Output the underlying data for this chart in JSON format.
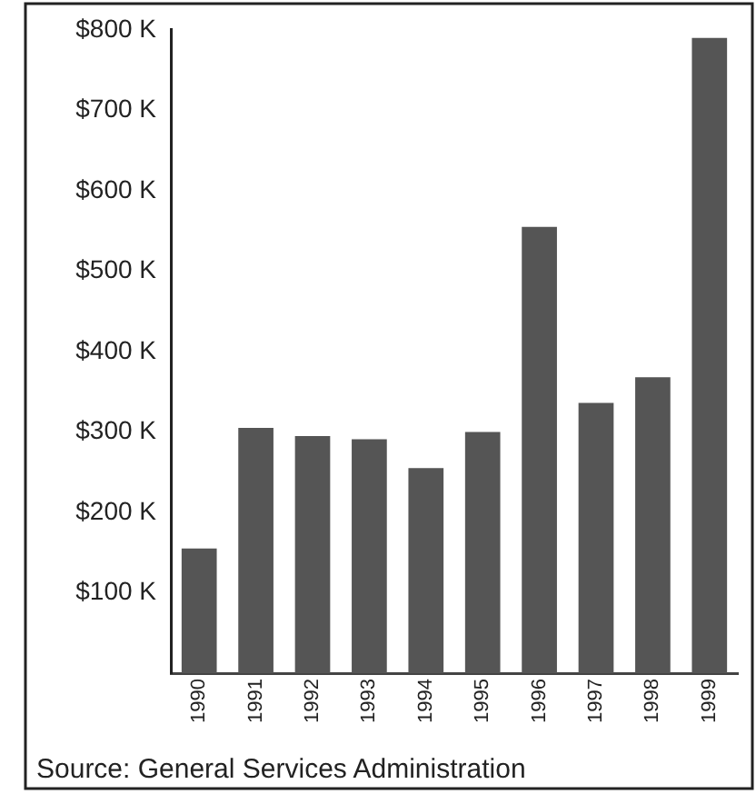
{
  "chart_data": {
    "type": "bar",
    "categories": [
      "1990",
      "1991",
      "1992",
      "1993",
      "1994",
      "1995",
      "1996",
      "1997",
      "1998",
      "1999"
    ],
    "values": [
      155,
      305,
      295,
      291,
      255,
      300,
      555,
      336,
      368,
      790
    ],
    "color": "#555555",
    "ylim": [
      0,
      800
    ],
    "yticks": [
      {
        "value": 100,
        "label": "$100 K"
      },
      {
        "value": 200,
        "label": "$200 K"
      },
      {
        "value": 300,
        "label": "$300 K"
      },
      {
        "value": 400,
        "label": "$400 K"
      },
      {
        "value": 500,
        "label": "$500 K"
      },
      {
        "value": 600,
        "label": "$600 K"
      },
      {
        "value": 700,
        "label": "$700 K"
      },
      {
        "value": 800,
        "label": "$800 K"
      }
    ],
    "grid": false,
    "legend": false,
    "annotations": [
      "Source: General Services Administration"
    ]
  }
}
